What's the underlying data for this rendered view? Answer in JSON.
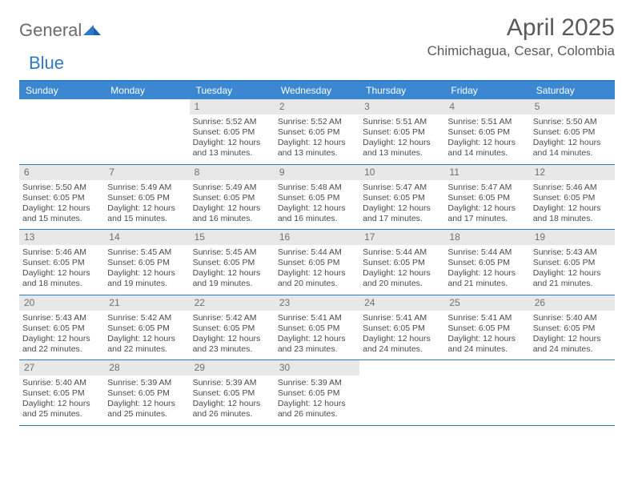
{
  "brand": {
    "part1": "General",
    "part2": "Blue"
  },
  "title": "April 2025",
  "location": "Chimichagua, Cesar, Colombia",
  "colors": {
    "header_bg": "#3b87d1",
    "border": "#2f78c4",
    "daynum_bg": "#e8e8e8",
    "text": "#4a4a4a"
  },
  "day_headers": [
    "Sunday",
    "Monday",
    "Tuesday",
    "Wednesday",
    "Thursday",
    "Friday",
    "Saturday"
  ],
  "weeks": [
    [
      {
        "empty": true
      },
      {
        "empty": true
      },
      {
        "d": "1",
        "sr": "Sunrise: 5:52 AM",
        "ss": "Sunset: 6:05 PM",
        "dl1": "Daylight: 12 hours",
        "dl2": "and 13 minutes."
      },
      {
        "d": "2",
        "sr": "Sunrise: 5:52 AM",
        "ss": "Sunset: 6:05 PM",
        "dl1": "Daylight: 12 hours",
        "dl2": "and 13 minutes."
      },
      {
        "d": "3",
        "sr": "Sunrise: 5:51 AM",
        "ss": "Sunset: 6:05 PM",
        "dl1": "Daylight: 12 hours",
        "dl2": "and 13 minutes."
      },
      {
        "d": "4",
        "sr": "Sunrise: 5:51 AM",
        "ss": "Sunset: 6:05 PM",
        "dl1": "Daylight: 12 hours",
        "dl2": "and 14 minutes."
      },
      {
        "d": "5",
        "sr": "Sunrise: 5:50 AM",
        "ss": "Sunset: 6:05 PM",
        "dl1": "Daylight: 12 hours",
        "dl2": "and 14 minutes."
      }
    ],
    [
      {
        "d": "6",
        "sr": "Sunrise: 5:50 AM",
        "ss": "Sunset: 6:05 PM",
        "dl1": "Daylight: 12 hours",
        "dl2": "and 15 minutes."
      },
      {
        "d": "7",
        "sr": "Sunrise: 5:49 AM",
        "ss": "Sunset: 6:05 PM",
        "dl1": "Daylight: 12 hours",
        "dl2": "and 15 minutes."
      },
      {
        "d": "8",
        "sr": "Sunrise: 5:49 AM",
        "ss": "Sunset: 6:05 PM",
        "dl1": "Daylight: 12 hours",
        "dl2": "and 16 minutes."
      },
      {
        "d": "9",
        "sr": "Sunrise: 5:48 AM",
        "ss": "Sunset: 6:05 PM",
        "dl1": "Daylight: 12 hours",
        "dl2": "and 16 minutes."
      },
      {
        "d": "10",
        "sr": "Sunrise: 5:47 AM",
        "ss": "Sunset: 6:05 PM",
        "dl1": "Daylight: 12 hours",
        "dl2": "and 17 minutes."
      },
      {
        "d": "11",
        "sr": "Sunrise: 5:47 AM",
        "ss": "Sunset: 6:05 PM",
        "dl1": "Daylight: 12 hours",
        "dl2": "and 17 minutes."
      },
      {
        "d": "12",
        "sr": "Sunrise: 5:46 AM",
        "ss": "Sunset: 6:05 PM",
        "dl1": "Daylight: 12 hours",
        "dl2": "and 18 minutes."
      }
    ],
    [
      {
        "d": "13",
        "sr": "Sunrise: 5:46 AM",
        "ss": "Sunset: 6:05 PM",
        "dl1": "Daylight: 12 hours",
        "dl2": "and 18 minutes."
      },
      {
        "d": "14",
        "sr": "Sunrise: 5:45 AM",
        "ss": "Sunset: 6:05 PM",
        "dl1": "Daylight: 12 hours",
        "dl2": "and 19 minutes."
      },
      {
        "d": "15",
        "sr": "Sunrise: 5:45 AM",
        "ss": "Sunset: 6:05 PM",
        "dl1": "Daylight: 12 hours",
        "dl2": "and 19 minutes."
      },
      {
        "d": "16",
        "sr": "Sunrise: 5:44 AM",
        "ss": "Sunset: 6:05 PM",
        "dl1": "Daylight: 12 hours",
        "dl2": "and 20 minutes."
      },
      {
        "d": "17",
        "sr": "Sunrise: 5:44 AM",
        "ss": "Sunset: 6:05 PM",
        "dl1": "Daylight: 12 hours",
        "dl2": "and 20 minutes."
      },
      {
        "d": "18",
        "sr": "Sunrise: 5:44 AM",
        "ss": "Sunset: 6:05 PM",
        "dl1": "Daylight: 12 hours",
        "dl2": "and 21 minutes."
      },
      {
        "d": "19",
        "sr": "Sunrise: 5:43 AM",
        "ss": "Sunset: 6:05 PM",
        "dl1": "Daylight: 12 hours",
        "dl2": "and 21 minutes."
      }
    ],
    [
      {
        "d": "20",
        "sr": "Sunrise: 5:43 AM",
        "ss": "Sunset: 6:05 PM",
        "dl1": "Daylight: 12 hours",
        "dl2": "and 22 minutes."
      },
      {
        "d": "21",
        "sr": "Sunrise: 5:42 AM",
        "ss": "Sunset: 6:05 PM",
        "dl1": "Daylight: 12 hours",
        "dl2": "and 22 minutes."
      },
      {
        "d": "22",
        "sr": "Sunrise: 5:42 AM",
        "ss": "Sunset: 6:05 PM",
        "dl1": "Daylight: 12 hours",
        "dl2": "and 23 minutes."
      },
      {
        "d": "23",
        "sr": "Sunrise: 5:41 AM",
        "ss": "Sunset: 6:05 PM",
        "dl1": "Daylight: 12 hours",
        "dl2": "and 23 minutes."
      },
      {
        "d": "24",
        "sr": "Sunrise: 5:41 AM",
        "ss": "Sunset: 6:05 PM",
        "dl1": "Daylight: 12 hours",
        "dl2": "and 24 minutes."
      },
      {
        "d": "25",
        "sr": "Sunrise: 5:41 AM",
        "ss": "Sunset: 6:05 PM",
        "dl1": "Daylight: 12 hours",
        "dl2": "and 24 minutes."
      },
      {
        "d": "26",
        "sr": "Sunrise: 5:40 AM",
        "ss": "Sunset: 6:05 PM",
        "dl1": "Daylight: 12 hours",
        "dl2": "and 24 minutes."
      }
    ],
    [
      {
        "d": "27",
        "sr": "Sunrise: 5:40 AM",
        "ss": "Sunset: 6:05 PM",
        "dl1": "Daylight: 12 hours",
        "dl2": "and 25 minutes."
      },
      {
        "d": "28",
        "sr": "Sunrise: 5:39 AM",
        "ss": "Sunset: 6:05 PM",
        "dl1": "Daylight: 12 hours",
        "dl2": "and 25 minutes."
      },
      {
        "d": "29",
        "sr": "Sunrise: 5:39 AM",
        "ss": "Sunset: 6:05 PM",
        "dl1": "Daylight: 12 hours",
        "dl2": "and 26 minutes."
      },
      {
        "d": "30",
        "sr": "Sunrise: 5:39 AM",
        "ss": "Sunset: 6:05 PM",
        "dl1": "Daylight: 12 hours",
        "dl2": "and 26 minutes."
      },
      {
        "empty": true
      },
      {
        "empty": true
      },
      {
        "empty": true
      }
    ]
  ]
}
